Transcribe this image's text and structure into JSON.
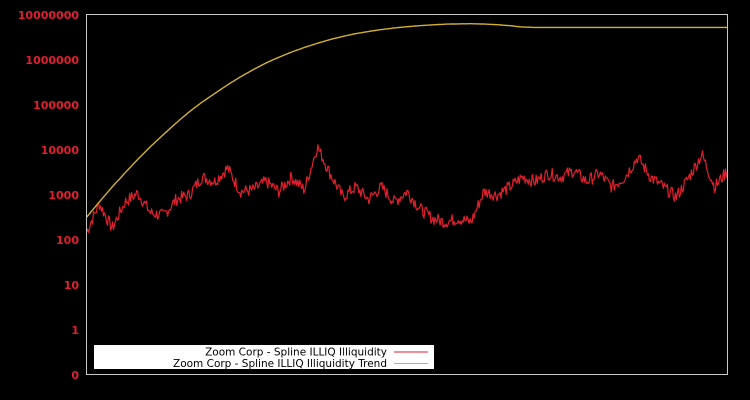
{
  "chart_data": {
    "type": "line",
    "title": "",
    "xlabel": "",
    "ylabel": "",
    "yscale": "log",
    "ylim": [
      0.1,
      10000000
    ],
    "y_tick_labels": [
      "10000000",
      "1000000",
      "100000",
      "10000",
      "1000",
      "100",
      "10",
      "1",
      "0"
    ],
    "y_tick_values": [
      10000000,
      1000000,
      100000,
      10000,
      1000,
      100,
      10,
      1,
      0.1
    ],
    "x_tick_labels": [],
    "grid": false,
    "legend_position": "lower left",
    "x": [
      0,
      0.02,
      0.04,
      0.06,
      0.08,
      0.1,
      0.12,
      0.14,
      0.16,
      0.18,
      0.2,
      0.22,
      0.24,
      0.26,
      0.28,
      0.3,
      0.32,
      0.34,
      0.36,
      0.38,
      0.4,
      0.42,
      0.44,
      0.46,
      0.48,
      0.5,
      0.52,
      0.54,
      0.56,
      0.58,
      0.6,
      0.62,
      0.64,
      0.66,
      0.68,
      0.7,
      0.72,
      0.74,
      0.76,
      0.78,
      0.8,
      0.82,
      0.84,
      0.86,
      0.88,
      0.9,
      0.92,
      0.94,
      0.96,
      0.98,
      1.0
    ],
    "series": [
      {
        "name": "Zoom Corp - Spline ILLIQ Illiquidity",
        "color": "#e0202e",
        "values": [
          150,
          650,
          180,
          700,
          1100,
          400,
          350,
          800,
          1000,
          2500,
          2000,
          4000,
          1200,
          1300,
          2000,
          1200,
          2500,
          1300,
          12000,
          3000,
          900,
          1500,
          800,
          1500,
          700,
          1200,
          500,
          300,
          250,
          300,
          250,
          1200,
          1000,
          1500,
          2500,
          2000,
          3000,
          2500,
          3500,
          2000,
          3000,
          1500,
          2500,
          7000,
          2500,
          1500,
          900,
          2500,
          8000,
          1500,
          3500
        ]
      },
      {
        "name": "Zoom Corp - Spline ILLIQ Illiquidity Trend",
        "color": "#d4b030",
        "values": [
          320,
          700,
          1500,
          3100,
          6200,
          12000,
          22000,
          40000,
          70000,
          115000,
          180000,
          280000,
          420000,
          610000,
          860000,
          1150000,
          1500000,
          1900000,
          2350000,
          2850000,
          3350000,
          3850000,
          4300000,
          4750000,
          5150000,
          5500000,
          5800000,
          6050000,
          6250000,
          6350000,
          6400000,
          6300000,
          6100000,
          5800000,
          5400000,
          5300000,
          5300000,
          5300000,
          5300000,
          5300000,
          5300000,
          5300000,
          5300000,
          5300000,
          5300000,
          5300000,
          5300000,
          5300000,
          5300000,
          5300000,
          5300000
        ]
      }
    ]
  },
  "legend": {
    "items": [
      {
        "label": "Zoom Corp - Spline ILLIQ Illiquidity",
        "color": "#e0202e"
      },
      {
        "label": "Zoom Corp - Spline ILLIQ Illiquidity Trend",
        "color": "#d4b030"
      }
    ]
  },
  "colors": {
    "background": "#000000",
    "axis": "#c8c8c8",
    "tick_label": "#e0202e",
    "legend_bg": "#ffffff"
  }
}
